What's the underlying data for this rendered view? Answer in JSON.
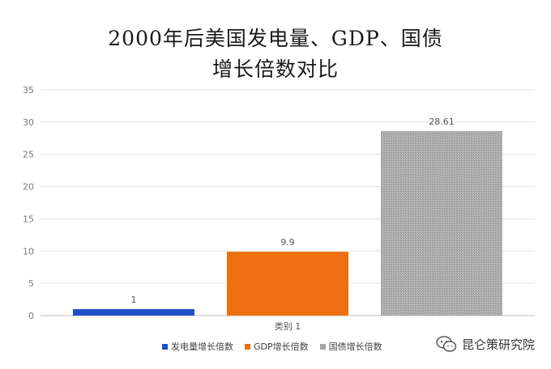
{
  "title_line1": "2000年后美国发电量、GDP、国债",
  "title_line2": "增长倍数对比",
  "watermark": "昆仑策研究院",
  "chart_data": {
    "type": "bar",
    "categories": [
      "类别 1"
    ],
    "series": [
      {
        "name": "发电量增长倍数",
        "values": [
          1
        ],
        "color": "#1f50c8"
      },
      {
        "name": "GDP增长倍数",
        "values": [
          9.9
        ],
        "color": "#ed6f0f"
      },
      {
        "name": "国债增长倍数",
        "values": [
          28.61
        ],
        "color": "#a6a6a6"
      }
    ],
    "data_labels": [
      "1",
      "9.9",
      "28.61"
    ],
    "yticks": [
      "0",
      "5",
      "10",
      "15",
      "20",
      "25",
      "30",
      "35"
    ],
    "ylim": [
      0,
      35
    ],
    "grid": true,
    "legend_position": "bottom"
  }
}
